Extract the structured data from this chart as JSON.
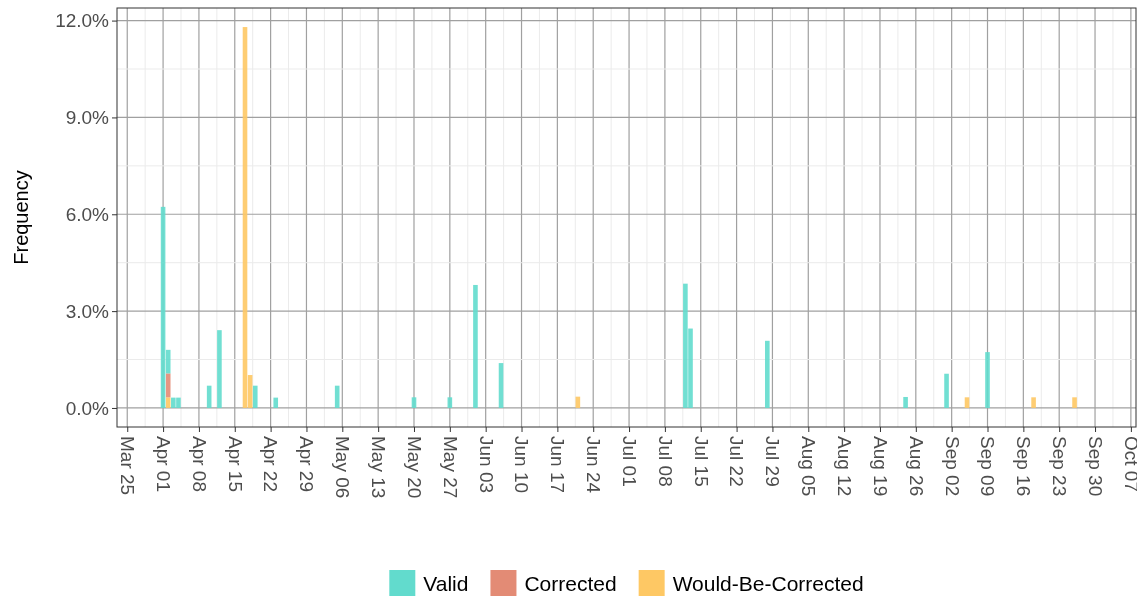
{
  "chart_data": {
    "type": "bar",
    "stacked": true,
    "ylabel": "Frequency",
    "x": [
      "--04-01",
      "--04-02",
      "--04-03",
      "--04-04",
      "--04-10",
      "--04-12",
      "--04-17",
      "--04-18",
      "--04-19",
      "--04-23",
      "--05-05",
      "--05-20",
      "--05-27",
      "--06-01",
      "--06-06",
      "--06-21",
      "--07-12",
      "--07-13",
      "--07-28",
      "--08-24",
      "--09-01",
      "--09-05",
      "--09-09",
      "--09-18",
      "--09-26"
    ],
    "series": [
      {
        "name": "Would-Be-Corrected",
        "color": "#fec864",
        "values": [
          null,
          0.33,
          null,
          null,
          null,
          null,
          11.8,
          1.02,
          null,
          null,
          null,
          null,
          null,
          null,
          null,
          0.35,
          null,
          null,
          null,
          null,
          null,
          0.33,
          null,
          0.33,
          0.33
        ]
      },
      {
        "name": "Corrected",
        "color": "#e38b75",
        "values": [
          null,
          0.74,
          null,
          null,
          null,
          null,
          null,
          null,
          null,
          null,
          null,
          null,
          null,
          null,
          null,
          null,
          null,
          null,
          null,
          null,
          null,
          null,
          null,
          null,
          null
        ]
      },
      {
        "name": "Valid",
        "color": "#62dbcd",
        "values": [
          6.23,
          0.73,
          0.32,
          0.32,
          0.69,
          2.41,
          null,
          null,
          0.69,
          0.32,
          0.69,
          0.33,
          0.33,
          3.81,
          1.39,
          null,
          3.85,
          2.46,
          2.08,
          0.34,
          1.06,
          null,
          1.73,
          null,
          null
        ]
      }
    ],
    "xlim": [
      "--03-23",
      "--10-08"
    ],
    "xticks": [
      {
        "value": "--03-25",
        "label": "Mar 25"
      },
      {
        "value": "--04-01",
        "label": "Apr 01"
      },
      {
        "value": "--04-08",
        "label": "Apr 08"
      },
      {
        "value": "--04-15",
        "label": "Apr 15"
      },
      {
        "value": "--04-22",
        "label": "Apr 22"
      },
      {
        "value": "--04-29",
        "label": "Apr 29"
      },
      {
        "value": "--05-06",
        "label": "May 06"
      },
      {
        "value": "--05-13",
        "label": "May 13"
      },
      {
        "value": "--05-20",
        "label": "May 20"
      },
      {
        "value": "--05-27",
        "label": "May 27"
      },
      {
        "value": "--06-03",
        "label": "Jun 03"
      },
      {
        "value": "--06-10",
        "label": "Jun 10"
      },
      {
        "value": "--06-17",
        "label": "Jun 17"
      },
      {
        "value": "--06-24",
        "label": "Jun 24"
      },
      {
        "value": "--07-01",
        "label": "Jul 01"
      },
      {
        "value": "--07-08",
        "label": "Jul 08"
      },
      {
        "value": "--07-15",
        "label": "Jul 15"
      },
      {
        "value": "--07-22",
        "label": "Jul 22"
      },
      {
        "value": "--07-29",
        "label": "Jul 29"
      },
      {
        "value": "--08-05",
        "label": "Aug 05"
      },
      {
        "value": "--08-12",
        "label": "Aug 12"
      },
      {
        "value": "--08-19",
        "label": "Aug 19"
      },
      {
        "value": "--08-26",
        "label": "Aug 26"
      },
      {
        "value": "--09-02",
        "label": "Sep 02"
      },
      {
        "value": "--09-09",
        "label": "Sep 09"
      },
      {
        "value": "--09-16",
        "label": "Sep 16"
      },
      {
        "value": "--09-23",
        "label": "Sep 23"
      },
      {
        "value": "--09-30",
        "label": "Sep 30"
      },
      {
        "value": "--10-07",
        "label": "Oct 07"
      }
    ],
    "ylim": [
      -0.59,
      12.39
    ],
    "yticks": [
      {
        "value": 0,
        "label": "0.0%"
      },
      {
        "value": 3,
        "label": "3.0%"
      },
      {
        "value": 6,
        "label": "6.0%"
      },
      {
        "value": 9,
        "label": "9.0%"
      },
      {
        "value": 12,
        "label": "12.0%"
      }
    ],
    "grid": true,
    "legend": "bottom"
  }
}
